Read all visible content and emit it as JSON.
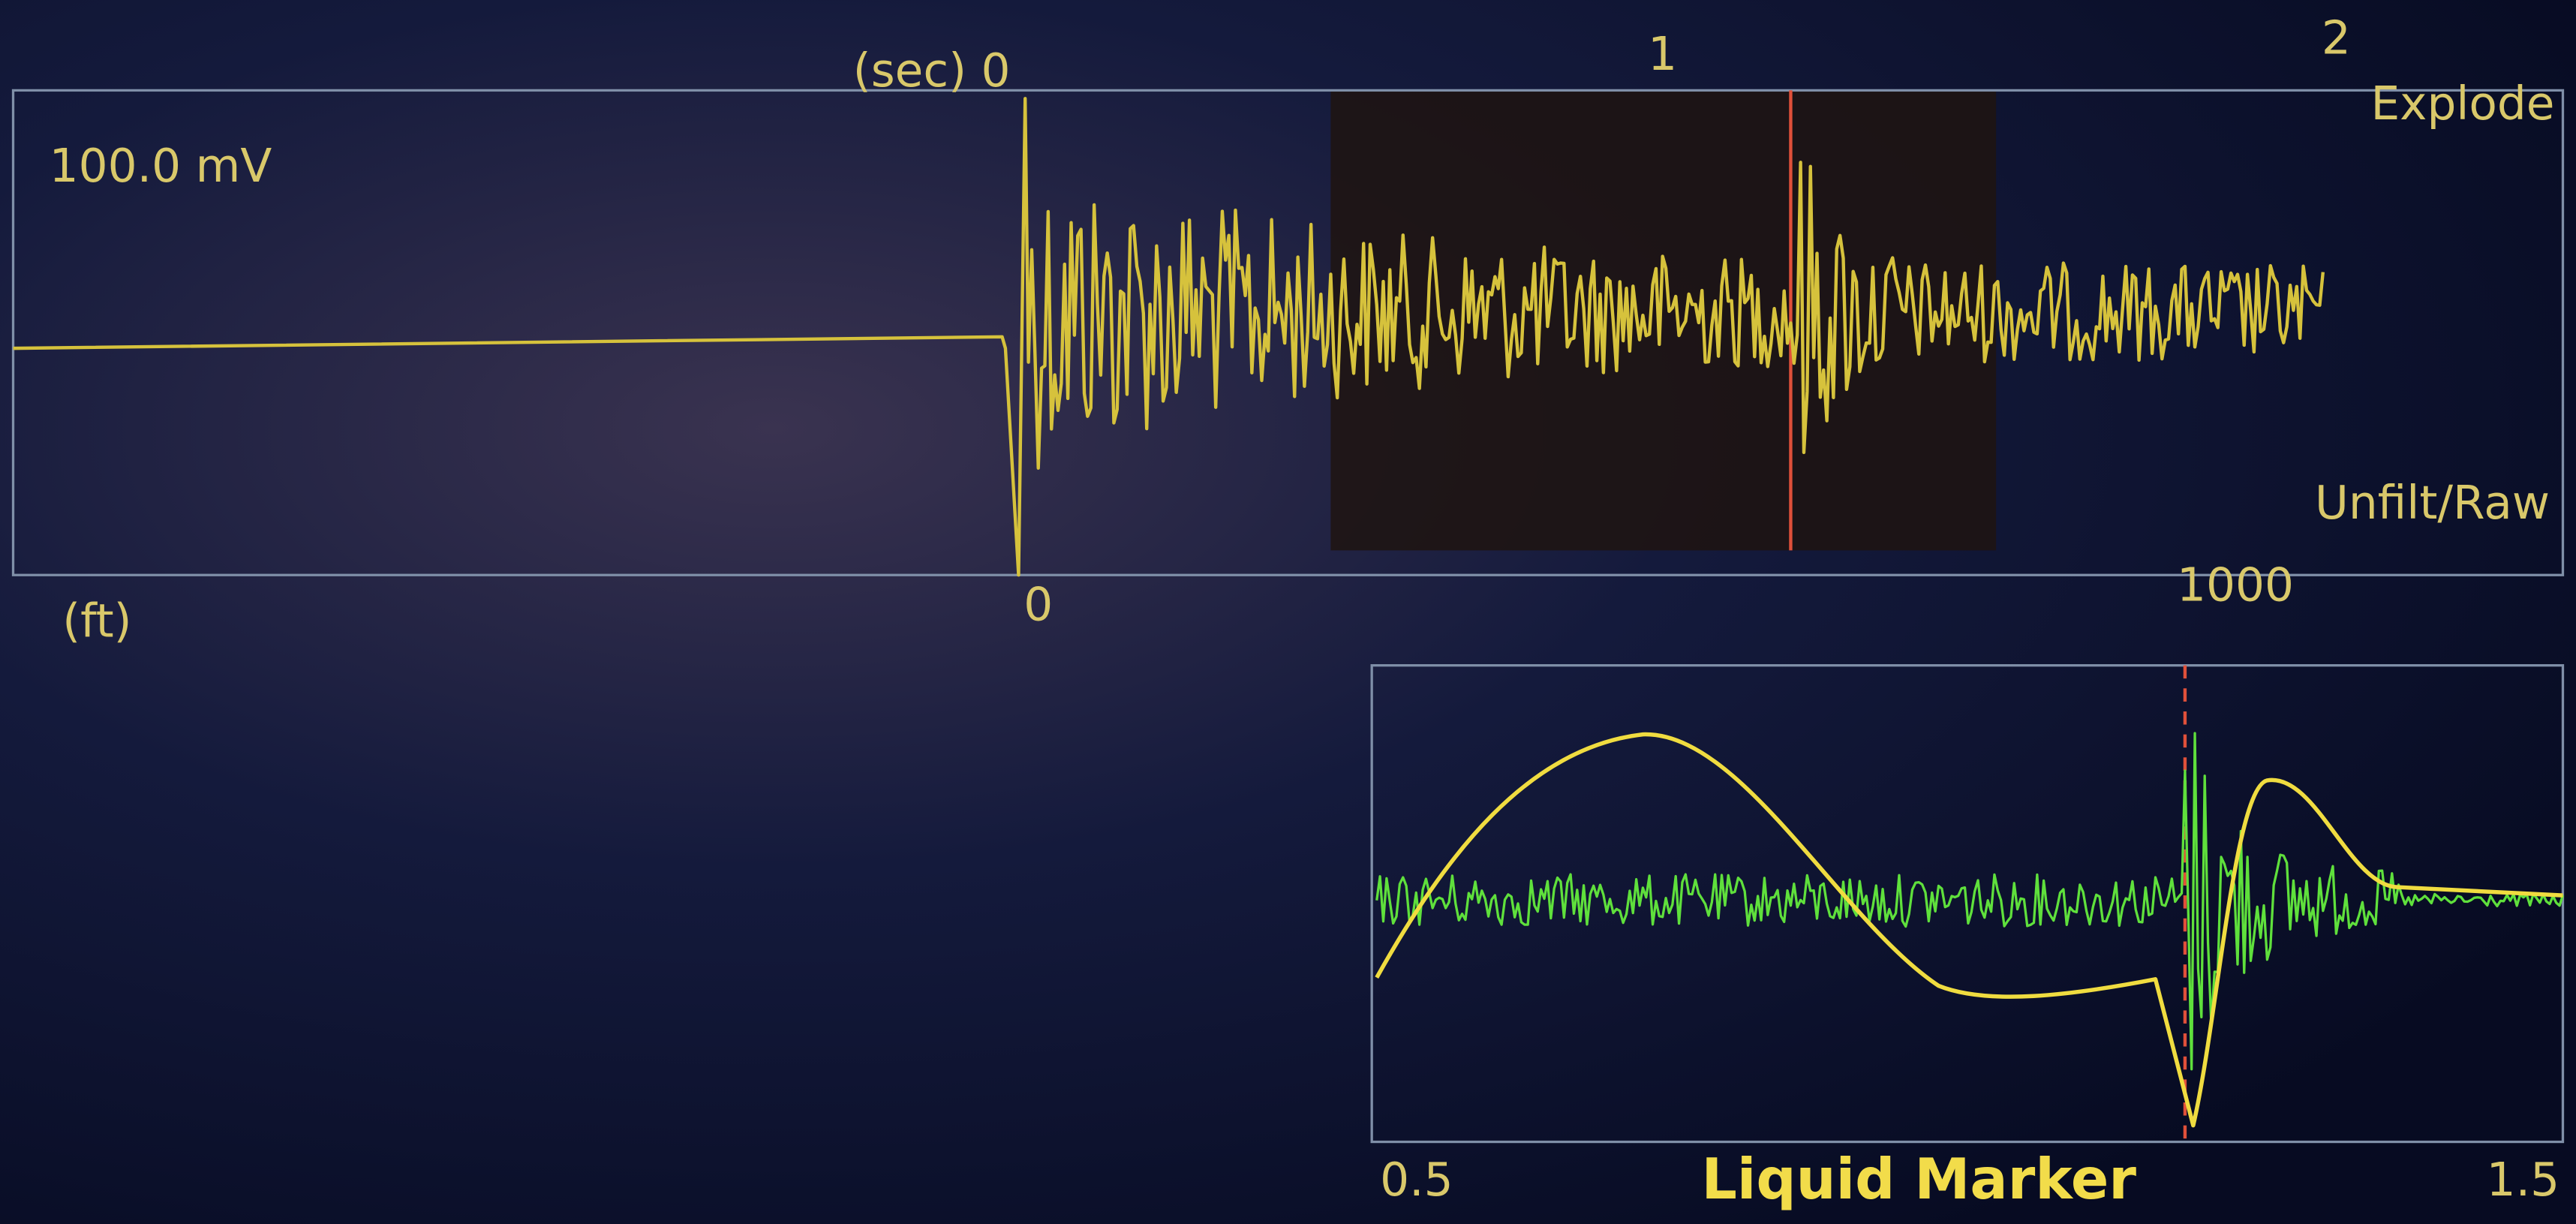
{
  "upper_panel": {
    "time_axis": {
      "label": "(sec) 0",
      "ticks": [
        "1",
        "2"
      ]
    },
    "mode": "Explode",
    "scale": "100.0 mV",
    "filter": "Unfilt/Raw",
    "depth_axis": {
      "unit": "(ft)",
      "start": "0",
      "end": "1000"
    }
  },
  "lower_panel": {
    "x_start": "0.5",
    "title": "Liquid Marker",
    "x_end": "1.5"
  }
}
